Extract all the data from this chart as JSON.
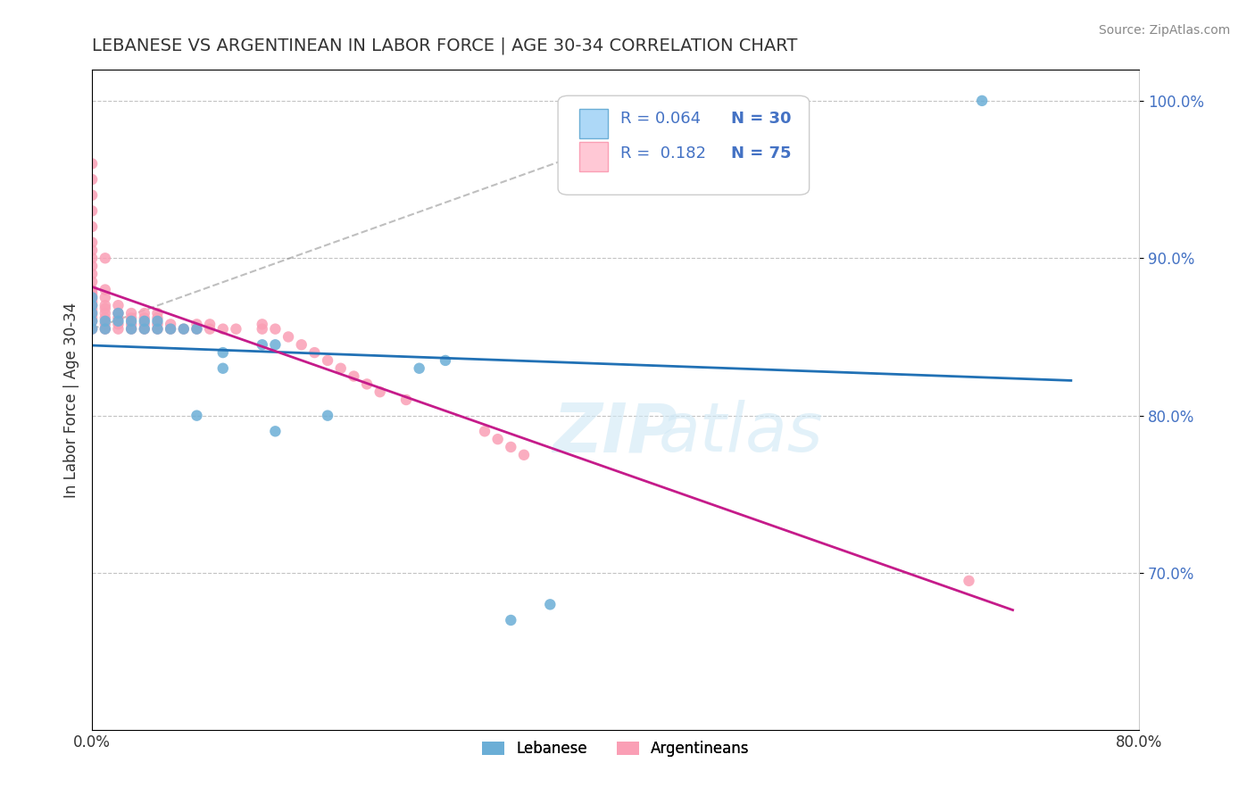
{
  "title": "LEBANESE VS ARGENTINEAN IN LABOR FORCE | AGE 30-34 CORRELATION CHART",
  "source": "Source: ZipAtlas.com",
  "xlabel_bottom": "",
  "ylabel": "In Labor Force | Age 30-34",
  "xaxis_label": "",
  "xlim": [
    0.0,
    0.8
  ],
  "ylim": [
    0.6,
    1.02
  ],
  "xticks": [
    0.0,
    0.8
  ],
  "xticklabels": [
    "0.0%",
    "80.0%"
  ],
  "yticks_right": [
    0.7,
    0.8,
    0.9,
    1.0
  ],
  "ytick_labels_right": [
    "70.0%",
    "80.0%",
    "90.0%",
    "100.0%"
  ],
  "legend_labels": [
    "Lebanese",
    "Argentineans"
  ],
  "legend_r": [
    "R = 0.064",
    "R =  0.182"
  ],
  "legend_n": [
    "N = 30",
    "N = 75"
  ],
  "blue_color": "#6baed6",
  "pink_color": "#fa9fb5",
  "blue_line_color": "#2171b5",
  "pink_line_color": "#c51b8a",
  "title_color": "#333333",
  "watermark": "ZIPatlas",
  "blue_scatter_x": [
    0.0,
    0.0,
    0.0,
    0.0,
    0.0,
    0.01,
    0.01,
    0.02,
    0.02,
    0.03,
    0.03,
    0.04,
    0.04,
    0.05,
    0.05,
    0.06,
    0.07,
    0.08,
    0.08,
    0.1,
    0.1,
    0.13,
    0.14,
    0.14,
    0.18,
    0.25,
    0.27,
    0.32,
    0.35,
    0.68
  ],
  "blue_scatter_y": [
    0.855,
    0.86,
    0.865,
    0.87,
    0.875,
    0.855,
    0.86,
    0.86,
    0.865,
    0.855,
    0.86,
    0.855,
    0.86,
    0.855,
    0.86,
    0.855,
    0.855,
    0.855,
    0.8,
    0.83,
    0.84,
    0.845,
    0.845,
    0.79,
    0.8,
    0.83,
    0.835,
    0.67,
    0.68,
    1.0
  ],
  "pink_scatter_x": [
    0.0,
    0.0,
    0.0,
    0.0,
    0.0,
    0.0,
    0.0,
    0.0,
    0.0,
    0.0,
    0.0,
    0.0,
    0.0,
    0.0,
    0.0,
    0.0,
    0.0,
    0.0,
    0.0,
    0.0,
    0.0,
    0.0,
    0.0,
    0.01,
    0.01,
    0.01,
    0.01,
    0.01,
    0.01,
    0.01,
    0.01,
    0.01,
    0.02,
    0.02,
    0.02,
    0.02,
    0.02,
    0.03,
    0.03,
    0.03,
    0.03,
    0.04,
    0.04,
    0.04,
    0.04,
    0.05,
    0.05,
    0.05,
    0.05,
    0.06,
    0.06,
    0.07,
    0.08,
    0.08,
    0.09,
    0.09,
    0.1,
    0.11,
    0.13,
    0.13,
    0.14,
    0.15,
    0.16,
    0.17,
    0.18,
    0.19,
    0.2,
    0.21,
    0.22,
    0.24,
    0.3,
    0.31,
    0.32,
    0.33,
    0.67
  ],
  "pink_scatter_y": [
    0.855,
    0.86,
    0.862,
    0.864,
    0.866,
    0.868,
    0.87,
    0.872,
    0.874,
    0.876,
    0.878,
    0.88,
    0.885,
    0.89,
    0.895,
    0.9,
    0.905,
    0.91,
    0.92,
    0.93,
    0.94,
    0.95,
    0.96,
    0.855,
    0.858,
    0.862,
    0.865,
    0.868,
    0.87,
    0.875,
    0.88,
    0.9,
    0.855,
    0.858,
    0.862,
    0.865,
    0.87,
    0.855,
    0.858,
    0.862,
    0.865,
    0.855,
    0.858,
    0.862,
    0.865,
    0.855,
    0.858,
    0.862,
    0.865,
    0.855,
    0.858,
    0.855,
    0.855,
    0.858,
    0.855,
    0.858,
    0.855,
    0.855,
    0.855,
    0.858,
    0.855,
    0.85,
    0.845,
    0.84,
    0.835,
    0.83,
    0.825,
    0.82,
    0.815,
    0.81,
    0.79,
    0.785,
    0.78,
    0.775,
    0.695
  ]
}
